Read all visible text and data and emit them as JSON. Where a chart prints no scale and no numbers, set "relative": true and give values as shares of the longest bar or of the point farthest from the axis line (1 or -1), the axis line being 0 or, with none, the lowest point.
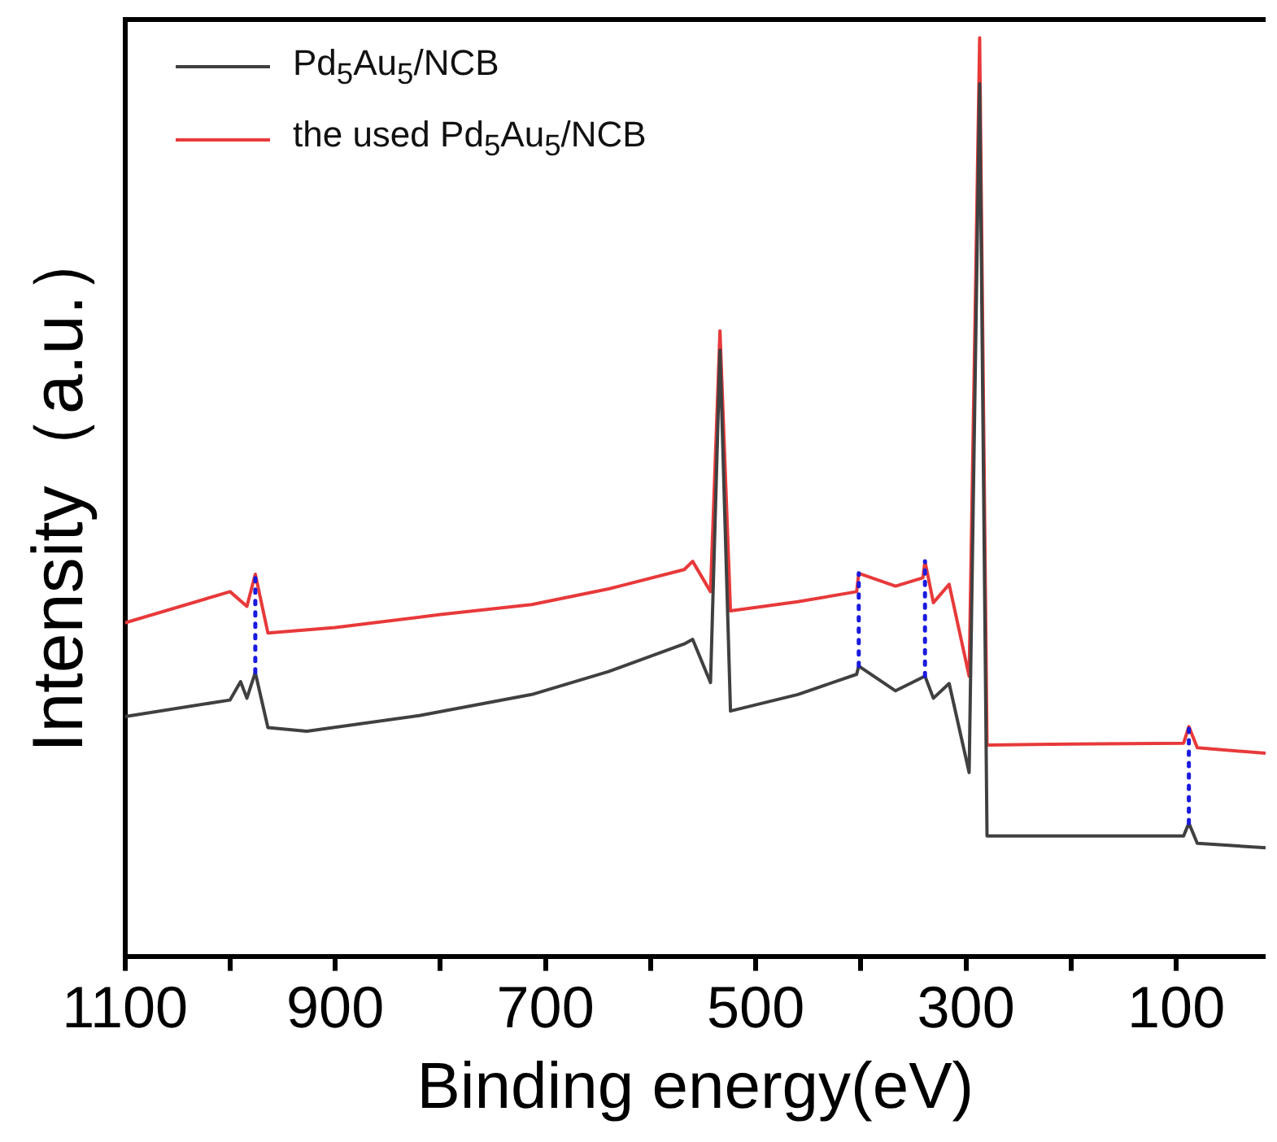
{
  "chart_data": {
    "type": "line",
    "xlabel": "Binding energy(eV)",
    "ylabel": "Intensity（a.u.）",
    "relative": true,
    "legend": "top left",
    "grid": false,
    "marker": "none",
    "line_style": "solid",
    "xlim": [
      1100,
      15
    ],
    "xticks": [
      1100,
      {
        "value": 1000,
        "label": null
      },
      900,
      {
        "value": 800,
        "label": null
      },
      700,
      {
        "value": 600,
        "label": null
      },
      500,
      {
        "value": 400,
        "label": null
      },
      300,
      {
        "value": 200,
        "label": null
      },
      100
    ],
    "series": [
      {
        "name": "Pd$_{5}$Au$_{5}$/NCB",
        "color": "#404040",
        "x": [
          1100,
          1000,
          990,
          984,
          976,
          964,
          927,
          820,
          713,
          640,
          568,
          560,
          543,
          534,
          524,
          460,
          404,
          402,
          367,
          339,
          331,
          316,
          297,
          287,
          280,
          200,
          93,
          88,
          80,
          15
        ],
        "values": [
          0.261,
          0.279,
          0.299,
          0.281,
          0.309,
          0.249,
          0.245,
          0.262,
          0.285,
          0.31,
          0.34,
          0.345,
          0.298,
          0.66,
          0.267,
          0.285,
          0.307,
          0.316,
          0.289,
          0.305,
          0.281,
          0.297,
          0.2,
          0.95,
          0.131,
          0.131,
          0.131,
          0.145,
          0.123,
          0.118
        ]
      },
      {
        "name": "the used Pd$_{5}$Au$_{5}$/NCB",
        "color": "#e8393a",
        "x": [
          1100,
          1000,
          984,
          976,
          964,
          900,
          800,
          713,
          640,
          568,
          560,
          543,
          534,
          524,
          460,
          404,
          402,
          367,
          341,
          339,
          331,
          316,
          297,
          287,
          280,
          200,
          93,
          88,
          80,
          15
        ],
        "values": [
          0.363,
          0.397,
          0.381,
          0.416,
          0.352,
          0.358,
          0.372,
          0.383,
          0.4,
          0.421,
          0.43,
          0.397,
          0.681,
          0.376,
          0.386,
          0.397,
          0.417,
          0.403,
          0.412,
          0.43,
          0.385,
          0.405,
          0.305,
          1.0,
          0.23,
          0.231,
          0.232,
          0.25,
          0.227,
          0.221
        ]
      }
    ],
    "ref_lines": [
      {
        "axis": "x",
        "value": 976,
        "color": "#1a1adf",
        "line_style": "dotted"
      },
      {
        "axis": "x",
        "value": 402,
        "color": "#1a1adf",
        "line_style": "dotted"
      },
      {
        "axis": "x",
        "value": 339,
        "color": "#1a1adf",
        "line_style": "dotted"
      },
      {
        "axis": "x",
        "value": 88,
        "color": "#1a1adf",
        "line_style": "dotted"
      }
    ]
  }
}
